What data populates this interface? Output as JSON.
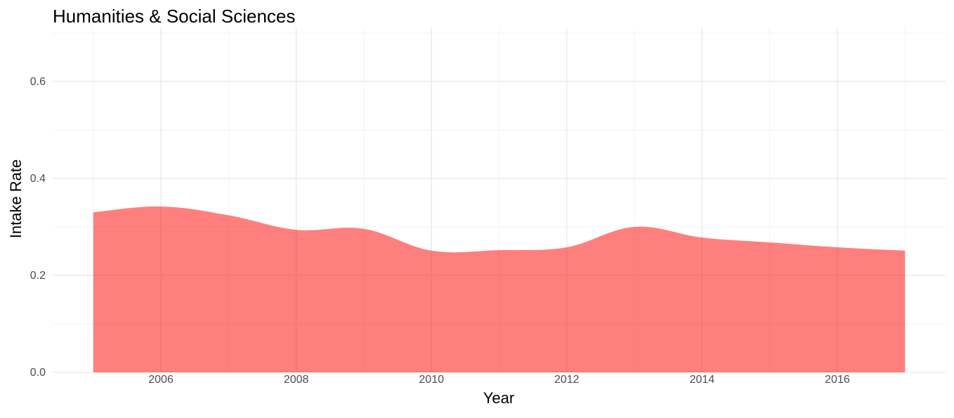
{
  "chart_data": {
    "type": "area",
    "title": "Humanities & Social Sciences",
    "xlabel": "Year",
    "ylabel": "Intake Rate",
    "x": [
      2005,
      2006,
      2007,
      2008,
      2009,
      2010,
      2011,
      2012,
      2013,
      2014,
      2015,
      2016,
      2017
    ],
    "series": [
      {
        "values": [
          0.33,
          0.342,
          0.324,
          0.294,
          0.296,
          0.251,
          0.252,
          0.258,
          0.3,
          0.278,
          0.268,
          0.258,
          0.251
        ]
      }
    ],
    "xlim": [
      2004.4,
      2017.6
    ],
    "ylim": [
      0,
      0.71
    ],
    "x_ticks": [
      2006,
      2008,
      2010,
      2012,
      2014,
      2016
    ],
    "y_ticks": [
      0.0,
      0.2,
      0.4,
      0.6
    ],
    "y_tick_labels": [
      "0.0",
      "0.2",
      "0.4",
      "0.6"
    ],
    "grid": true,
    "legend": "none",
    "colors": {
      "fill": "#ff0000",
      "fill_opacity": 0.5,
      "grid_major": "#ebebeb",
      "grid_minor": "#f3f3f3"
    }
  }
}
